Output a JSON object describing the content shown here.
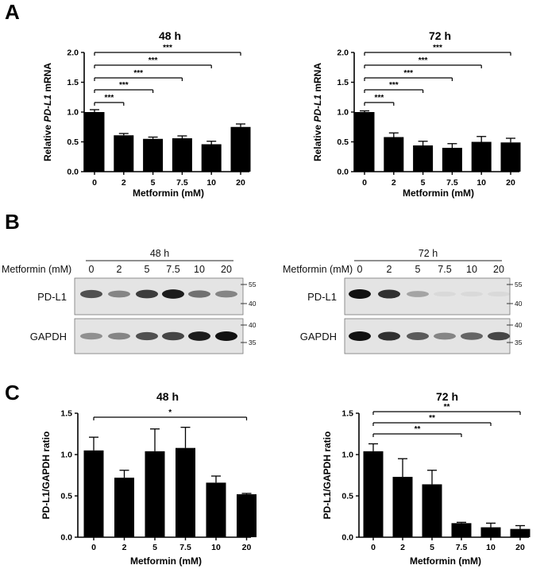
{
  "panels": {
    "a": "A",
    "b": "B",
    "c": "C"
  },
  "blots": [
    {
      "time_label": "48 h",
      "treatment_label": "Metformin (mM)",
      "lanes": [
        "0",
        "2",
        "5",
        "7.5",
        "10",
        "20"
      ],
      "rows": [
        {
          "label": "PD-L1",
          "markers": [
            "55",
            "40"
          ],
          "band_intensity": [
            0.7,
            0.45,
            0.8,
            0.95,
            0.55,
            0.45
          ]
        },
        {
          "label": "GAPDH",
          "markers": [
            "40",
            "35"
          ],
          "band_intensity": [
            0.4,
            0.45,
            0.7,
            0.75,
            0.95,
            1.0
          ]
        }
      ]
    },
    {
      "time_label": "72 h",
      "treatment_label": "Metformin (mM)",
      "lanes": [
        "0",
        "2",
        "5",
        "7.5",
        "10",
        "20"
      ],
      "rows": [
        {
          "label": "PD-L1",
          "markers": [
            "55",
            "40"
          ],
          "band_intensity": [
            1.0,
            0.85,
            0.3,
            0.04,
            0.04,
            0.05
          ]
        },
        {
          "label": "GAPDH",
          "markers": [
            "40",
            "35"
          ],
          "band_intensity": [
            1.0,
            0.85,
            0.65,
            0.45,
            0.6,
            0.75
          ]
        }
      ]
    }
  ],
  "chart_data": [
    {
      "type": "bar",
      "title": "48 h",
      "xlabel": "Metformin (mM)",
      "ylabel_prefix": "Relative ",
      "ylabel_gene": "PD-L1",
      "ylabel_suffix": " mRNA",
      "categories": [
        "0",
        "2",
        "5",
        "7.5",
        "10",
        "20"
      ],
      "values": [
        1.0,
        0.61,
        0.55,
        0.56,
        0.46,
        0.75
      ],
      "errors": [
        0.04,
        0.03,
        0.03,
        0.04,
        0.05,
        0.05
      ],
      "ylim": [
        0,
        2.0
      ],
      "yticks": [
        "0.0",
        "0.5",
        "1.0",
        "1.5",
        "2.0"
      ],
      "significance": [
        {
          "from": 0,
          "to": 1,
          "label": "***"
        },
        {
          "from": 0,
          "to": 2,
          "label": "***"
        },
        {
          "from": 0,
          "to": 3,
          "label": "***"
        },
        {
          "from": 0,
          "to": 4,
          "label": "***"
        },
        {
          "from": 0,
          "to": 5,
          "label": "***"
        }
      ]
    },
    {
      "type": "bar",
      "title": "72 h",
      "xlabel": "Metformin (mM)",
      "ylabel_prefix": "Relative ",
      "ylabel_gene": "PD-L1",
      "ylabel_suffix": " mRNA",
      "categories": [
        "0",
        "2",
        "5",
        "7.5",
        "10",
        "20"
      ],
      "values": [
        1.0,
        0.58,
        0.44,
        0.4,
        0.5,
        0.49
      ],
      "errors": [
        0.02,
        0.07,
        0.07,
        0.07,
        0.09,
        0.07
      ],
      "ylim": [
        0,
        2.0
      ],
      "yticks": [
        "0.0",
        "0.5",
        "1.0",
        "1.5",
        "2.0"
      ],
      "significance": [
        {
          "from": 0,
          "to": 1,
          "label": "***"
        },
        {
          "from": 0,
          "to": 2,
          "label": "***"
        },
        {
          "from": 0,
          "to": 3,
          "label": "***"
        },
        {
          "from": 0,
          "to": 4,
          "label": "***"
        },
        {
          "from": 0,
          "to": 5,
          "label": "***"
        }
      ]
    },
    {
      "type": "bar",
      "title": "48 h",
      "xlabel": "Metformin (mM)",
      "ylabel": "PD-L1/GAPDH ratio",
      "categories": [
        "0",
        "2",
        "5",
        "7.5",
        "10",
        "20"
      ],
      "values": [
        1.05,
        0.72,
        1.04,
        1.08,
        0.66,
        0.52
      ],
      "errors": [
        0.16,
        0.09,
        0.27,
        0.25,
        0.08,
        0.01
      ],
      "ylim": [
        0,
        1.5
      ],
      "yticks": [
        "0.0",
        "0.5",
        "1.0",
        "1.5"
      ],
      "significance": [
        {
          "from": 0,
          "to": 5,
          "label": "*"
        }
      ]
    },
    {
      "type": "bar",
      "title": "72 h",
      "xlabel": "Metformin (mM)",
      "ylabel": "PD-L1/GAPDH ratio",
      "categories": [
        "0",
        "2",
        "5",
        "7.5",
        "10",
        "20"
      ],
      "values": [
        1.04,
        0.73,
        0.64,
        0.17,
        0.12,
        0.1
      ],
      "errors": [
        0.09,
        0.22,
        0.17,
        0.01,
        0.05,
        0.04
      ],
      "ylim": [
        0,
        1.5
      ],
      "yticks": [
        "0.0",
        "0.5",
        "1.0",
        "1.5"
      ],
      "significance": [
        {
          "from": 0,
          "to": 3,
          "label": "**"
        },
        {
          "from": 0,
          "to": 4,
          "label": "**"
        },
        {
          "from": 0,
          "to": 5,
          "label": "**"
        }
      ]
    }
  ]
}
